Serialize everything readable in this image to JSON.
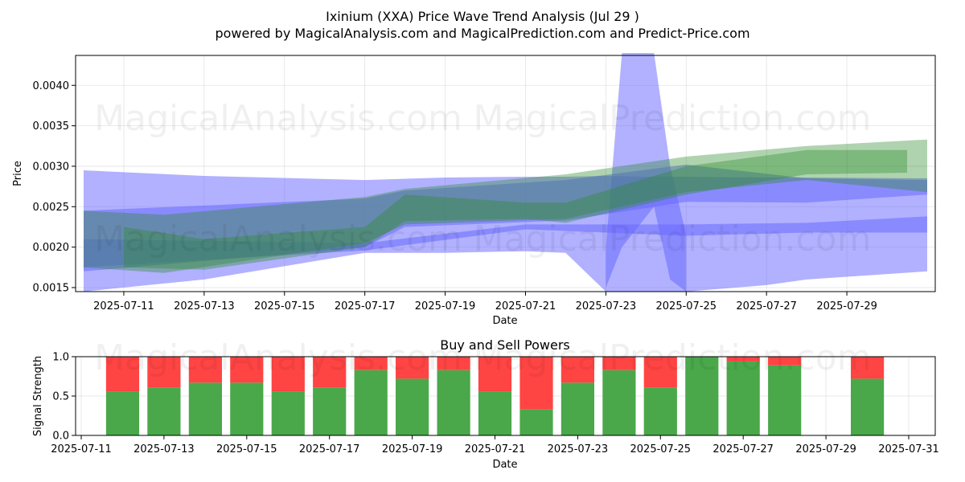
{
  "header": {
    "title": "Ixinium (XXA) Price Wave Trend Analysis (Jul 29 )",
    "subtitle": "powered by MagicalAnalysis.com and MagicalPrediction.com and Predict-Price.com"
  },
  "watermarks": [
    "MagicalAnalysis.com",
    "MagicalPrediction.com"
  ],
  "colors": {
    "blue_band": "#6464ff",
    "green_band": "#2e8b2e",
    "buy": "#4aa84a",
    "sell": "#ff4444"
  },
  "chart_data": [
    {
      "type": "area",
      "xlabel": "Date",
      "ylabel": "Price",
      "xlim": [
        "2025-07-10",
        "2025-07-31"
      ],
      "ylim": [
        0.00145,
        0.00437
      ],
      "x_ticks": [
        "2025-07-11",
        "2025-07-13",
        "2025-07-15",
        "2025-07-17",
        "2025-07-19",
        "2025-07-21",
        "2025-07-23",
        "2025-07-25",
        "2025-07-27",
        "2025-07-29"
      ],
      "y_ticks": [
        0.0015,
        0.002,
        0.0025,
        0.003,
        0.0035,
        0.004
      ],
      "y_tick_labels": [
        "0.0015",
        "0.0020",
        "0.0025",
        "0.0030",
        "0.0035",
        "0.0040"
      ],
      "series": [
        {
          "color": "blue",
          "bands": [
            {
              "x": [
                "2025-07-10",
                "2025-07-13",
                "2025-07-17",
                "2025-07-19",
                "2025-07-21",
                "2025-07-22",
                "2025-07-23",
                "2025-07-24",
                "2025-07-25",
                "2025-07-27",
                "2025-07-28",
                "2025-07-31"
              ],
              "upper": [
                0.00295,
                0.00288,
                0.00283,
                0.00286,
                0.00287,
                0.00287,
                0.00288,
                0.00287,
                0.00287,
                0.00286,
                0.00286,
                0.00285
              ],
              "lower": [
                0.00145,
                0.0016,
                0.00193,
                0.00193,
                0.00195,
                0.00193,
                0.00145,
                0.00145,
                0.00145,
                0.00153,
                0.0016,
                0.0017
              ]
            },
            {
              "x": [
                "2025-07-23",
                "2025-07-23.4",
                "2025-07-24.2",
                "2025-07-24.6",
                "2025-07-25"
              ],
              "upper": [
                0.002,
                0.0044,
                0.0044,
                0.003,
                0.00215
              ],
              "lower": [
                0.0015,
                0.002,
                0.0025,
                0.0016,
                0.00145
              ]
            },
            {
              "x": [
                "2025-07-10",
                "2025-07-17",
                "2025-07-21",
                "2025-07-25",
                "2025-07-28",
                "2025-07-31"
              ],
              "upper": [
                0.0021,
                0.00205,
                0.00228,
                0.00228,
                0.0023,
                0.00238
              ],
              "lower": [
                0.00175,
                0.00196,
                0.00222,
                0.00214,
                0.00218,
                0.00218
              ]
            },
            {
              "x": [
                "2025-07-10",
                "2025-07-17",
                "2025-07-18",
                "2025-07-22",
                "2025-07-25",
                "2025-07-28",
                "2025-07-31"
              ],
              "upper": [
                0.00245,
                0.0026,
                0.0027,
                0.00283,
                0.00302,
                0.00285,
                0.00283
              ],
              "lower": [
                0.0017,
                0.002,
                0.00225,
                0.00233,
                0.00256,
                0.00255,
                0.00265
              ]
            }
          ]
        },
        {
          "color": "green",
          "bands": [
            {
              "x": [
                "2025-07-10",
                "2025-07-12",
                "2025-07-17",
                "2025-07-18",
                "2025-07-22",
                "2025-07-25",
                "2025-07-28",
                "2025-07-31"
              ],
              "upper": [
                0.00245,
                0.0024,
                0.00262,
                0.00272,
                0.0029,
                0.00312,
                0.00325,
                0.00333
              ],
              "lower": [
                0.00175,
                0.00168,
                0.00205,
                0.00228,
                0.00235,
                0.00268,
                0.00283,
                0.00268
              ]
            },
            {
              "x": [
                "2025-07-11",
                "2025-07-13",
                "2025-07-17",
                "2025-07-18",
                "2025-07-21",
                "2025-07-22",
                "2025-07-25",
                "2025-07-28",
                "2025-07-30.5"
              ],
              "upper": [
                0.00225,
                0.0021,
                0.00225,
                0.00265,
                0.00255,
                0.00255,
                0.003,
                0.0032,
                0.0032
              ],
              "lower": [
                0.00175,
                0.00172,
                0.002,
                0.00232,
                0.00235,
                0.0023,
                0.00265,
                0.0029,
                0.00292
              ]
            }
          ]
        }
      ]
    },
    {
      "type": "bar",
      "title": "Buy and Sell Powers",
      "xlabel": "Date",
      "ylabel": "Signal Strength",
      "xlim": [
        "2025-07-11",
        "2025-07-31"
      ],
      "ylim": [
        0.0,
        1.0
      ],
      "x_ticks": [
        "2025-07-11",
        "2025-07-13",
        "2025-07-15",
        "2025-07-17",
        "2025-07-19",
        "2025-07-21",
        "2025-07-23",
        "2025-07-25",
        "2025-07-27",
        "2025-07-29",
        "2025-07-31"
      ],
      "y_ticks": [
        0.0,
        0.5,
        1.0
      ],
      "y_tick_labels": [
        "0.0",
        "0.5",
        "1.0"
      ],
      "categories": [
        "2025-07-12",
        "2025-07-13",
        "2025-07-14",
        "2025-07-15",
        "2025-07-16",
        "2025-07-17",
        "2025-07-18",
        "2025-07-19",
        "2025-07-20",
        "2025-07-21",
        "2025-07-22",
        "2025-07-23",
        "2025-07-24",
        "2025-07-25",
        "2025-07-26",
        "2025-07-27",
        "2025-07-28",
        "2025-07-30"
      ],
      "series": [
        {
          "name": "buy",
          "values": [
            0.56,
            0.61,
            0.67,
            0.67,
            0.56,
            0.61,
            0.83,
            0.72,
            0.83,
            0.56,
            0.33,
            0.67,
            0.83,
            0.61,
            1.0,
            0.94,
            0.89,
            0.72
          ]
        },
        {
          "name": "sell",
          "values": [
            0.44,
            0.39,
            0.33,
            0.33,
            0.44,
            0.39,
            0.17,
            0.28,
            0.17,
            0.44,
            0.67,
            0.33,
            0.17,
            0.39,
            0.0,
            0.06,
            0.11,
            0.28
          ]
        }
      ]
    }
  ]
}
